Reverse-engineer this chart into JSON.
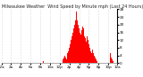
{
  "title": "Milwaukee Weather  Wind Speed by Minute mph (Last 24 Hours)",
  "bar_color": "#ff0000",
  "background_color": "#ffffff",
  "plot_bg_color": "#ffffff",
  "grid_color": "#bbbbbb",
  "ylim": [
    0,
    28
  ],
  "yticks": [
    0,
    4,
    8,
    12,
    16,
    20,
    24,
    28
  ],
  "title_fontsize": 3.5,
  "tick_fontsize": 3.0,
  "values": [
    0,
    0,
    0,
    0,
    0,
    0,
    0,
    0,
    0,
    0,
    0,
    0,
    0,
    0,
    0,
    0,
    0,
    0,
    0,
    0,
    0,
    0,
    0,
    0,
    0,
    0,
    0,
    0,
    0,
    0,
    0,
    0,
    0,
    0,
    0,
    0,
    0,
    0,
    0,
    0,
    0,
    0,
    0,
    0,
    0,
    0,
    0,
    0,
    0,
    0,
    0,
    0,
    1,
    0,
    0,
    0,
    0,
    0,
    0,
    0,
    0,
    0,
    0,
    0,
    0,
    0,
    0,
    0,
    0,
    0,
    0,
    0,
    0,
    0,
    0,
    0,
    2,
    3,
    4,
    3,
    2,
    4,
    5,
    6,
    8,
    10,
    12,
    14,
    16,
    18,
    20,
    22,
    25,
    27,
    22,
    20,
    18,
    16,
    15,
    17,
    19,
    18,
    16,
    14,
    13,
    11,
    14,
    12,
    10,
    8,
    6,
    5,
    7,
    6,
    5,
    4,
    3,
    2,
    1,
    0,
    0,
    0,
    0,
    0,
    0,
    0,
    0,
    0,
    0,
    0,
    0,
    0,
    0,
    0,
    4,
    5,
    3,
    2,
    1,
    0,
    0,
    0,
    0,
    0
  ],
  "xtick_positions": [
    0,
    12,
    24,
    36,
    48,
    60,
    72,
    84,
    96,
    108,
    120,
    132,
    143
  ],
  "xtick_labels": [
    "12a",
    "2a",
    "4a",
    "6a",
    "8a",
    "10a",
    "12p",
    "2p",
    "4p",
    "6p",
    "8p",
    "10p",
    "12a"
  ]
}
